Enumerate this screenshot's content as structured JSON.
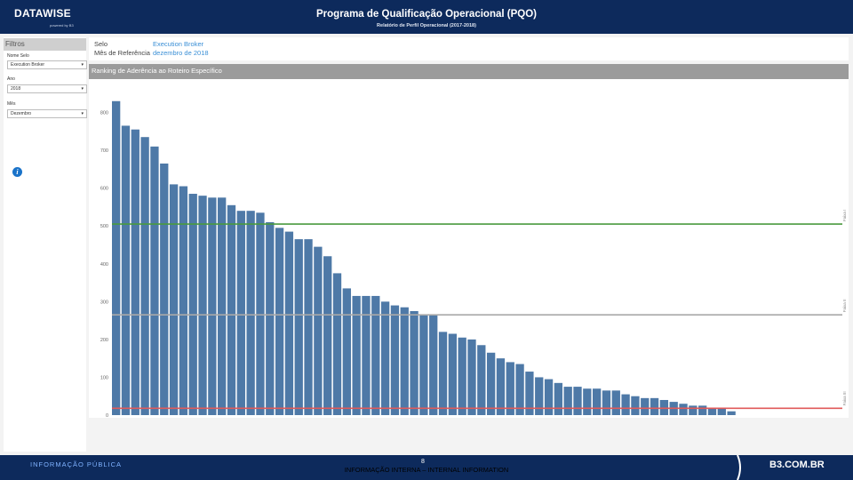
{
  "header": {
    "brand": "DATAWISE",
    "brand_sub": "powered by B3",
    "title": "Programa de Qualificação Operacional (PQO)",
    "subtitle": "Relatório de Perfil Operacional (2017-2018)",
    "colors": {
      "background": "#0d2a5c"
    }
  },
  "filters": {
    "title": "Filtros",
    "nome_selo": {
      "label": "Nome Selo",
      "value": "Execution Broker"
    },
    "ano": {
      "label": "Ano",
      "value": "2018"
    },
    "mes": {
      "label": "Mês",
      "value": "Dezembro"
    },
    "info_icon": "info-icon"
  },
  "info": {
    "selo_label": "Selo",
    "selo_value": "Execution Broker",
    "mes_label": "Mês de Referência",
    "mes_value": "dezembro de 2018",
    "value_color": "#3a8fd6"
  },
  "chart_header": "Ranking de Aderência ao Roteiro Específico",
  "chart_data": {
    "type": "bar",
    "title": "Ranking de Aderência ao Roteiro Específico",
    "ylim": [
      0,
      860
    ],
    "yticks": [
      0,
      100,
      200,
      300,
      400,
      500,
      600,
      700,
      800
    ],
    "ytick_labels": [
      "0",
      "100",
      "200",
      "300",
      "400",
      "500",
      "600",
      "700",
      "800"
    ],
    "bar_color": "#4e79a7",
    "values": [
      830,
      765,
      755,
      735,
      710,
      665,
      610,
      605,
      585,
      580,
      575,
      575,
      555,
      540,
      540,
      535,
      510,
      495,
      485,
      465,
      465,
      445,
      420,
      375,
      335,
      315,
      315,
      315,
      300,
      290,
      285,
      275,
      265,
      265,
      220,
      215,
      205,
      200,
      185,
      165,
      150,
      140,
      135,
      115,
      100,
      95,
      85,
      75,
      75,
      70,
      70,
      65,
      65,
      55,
      50,
      45,
      45,
      40,
      35,
      30,
      25,
      25,
      20,
      20,
      10
    ],
    "reference_lines": [
      {
        "label": "Faixa I",
        "value": 505,
        "color": "#4a9a3f"
      },
      {
        "label": "Faixa II",
        "value": 265,
        "color": "#a9a9a9"
      },
      {
        "label": "Faixa III",
        "value": 18,
        "color": "#e05a5a"
      }
    ],
    "grid": false
  },
  "footer": {
    "classification_left": "INFORMAÇÃO PÚBLICA",
    "page_number": "8",
    "classification_center": "INFORMAÇÃO INTERNA – INTERNAL INFORMATION",
    "brand": "B3.COM.BR",
    "left_color": "#7fb2ff"
  }
}
